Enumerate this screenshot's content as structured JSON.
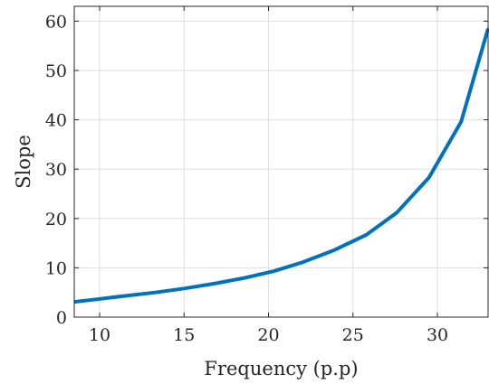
{
  "chart_data": {
    "type": "line",
    "title": "",
    "xlabel": "Frequency (p.p)",
    "ylabel": "Slope",
    "xlim": [
      8.5,
      33
    ],
    "ylim": [
      0,
      63
    ],
    "xticks": [
      10,
      15,
      20,
      25,
      30
    ],
    "yticks": [
      0,
      10,
      20,
      30,
      40,
      50,
      60
    ],
    "grid": true,
    "series": [
      {
        "color": "#0072bd",
        "x": [
          8.5,
          9.8,
          11.5,
          13.3,
          15.0,
          16.8,
          18.5,
          20.3,
          22.0,
          23.9,
          25.8,
          27.6,
          29.5,
          31.4,
          33.0
        ],
        "y": [
          3.1,
          3.6,
          4.3,
          5.0,
          5.8,
          6.8,
          7.9,
          9.3,
          11.1,
          13.6,
          16.7,
          21.2,
          28.3,
          39.6,
          58.5
        ]
      }
    ]
  }
}
